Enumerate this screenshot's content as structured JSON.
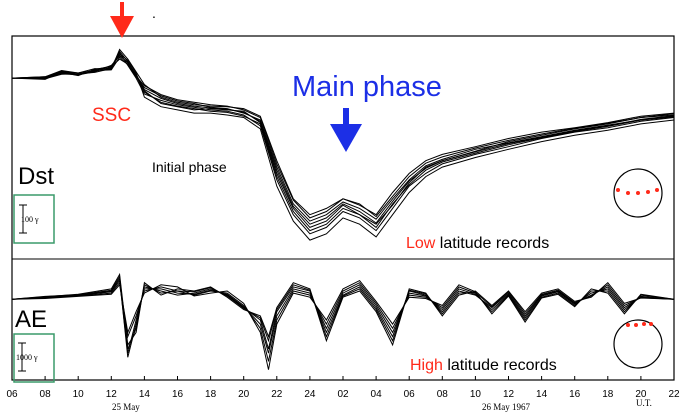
{
  "colors": {
    "annotation_red": "#ff2a1a",
    "main_phase_blue": "#1c2fe6",
    "scale_box_green": "#3a9a6a",
    "trace": "#000000"
  },
  "annotations": {
    "ssc": "SSC",
    "main_phase": "Main phase",
    "initial_phase": "Initial phase",
    "dot": ".",
    "ssc_arrow_icon": "down-arrow-icon",
    "main_phase_arrow_icon": "down-arrow-icon"
  },
  "panels": {
    "dst": {
      "label": "Dst",
      "scale": "100 γ",
      "record_highlight": "Low",
      "record_rest": " latitude records",
      "station_icon": "globe-low-latitude-icon"
    },
    "ae": {
      "label": "AE",
      "scale": "1000 γ",
      "record_highlight": "High",
      "record_rest": " latitude records",
      "station_icon": "globe-high-latitude-icon"
    }
  },
  "date_labels": {
    "day1": "25 May",
    "day2": "26 May 1967",
    "ut": "U.T."
  },
  "chart_data": [
    {
      "type": "line",
      "panel": "Dst",
      "xlabel": "",
      "ylabel": "Dst",
      "x_ticks": [
        "06",
        "08",
        "10",
        "12",
        "14",
        "16",
        "18",
        "20",
        "22",
        "24",
        "02",
        "04",
        "06",
        "08",
        "10",
        "12",
        "14",
        "16",
        "18",
        "20",
        "22"
      ],
      "x_range_hours": [
        6,
        46
      ],
      "y_range_gamma": [
        -280,
        60
      ],
      "x_hours": [
        6,
        8,
        9,
        10,
        11,
        12,
        12.5,
        13,
        13.5,
        14,
        15,
        16,
        17,
        18,
        19,
        20,
        21,
        22,
        23,
        24,
        25,
        26,
        27,
        28,
        29,
        30,
        31,
        32,
        34,
        36,
        38,
        40,
        42,
        44,
        46
      ],
      "series": [
        {
          "values": [
            0,
            2,
            12,
            8,
            15,
            14,
            45,
            30,
            10,
            -10,
            -30,
            -38,
            -42,
            -44,
            -45,
            -48,
            -60,
            -130,
            -190,
            -215,
            -205,
            -190,
            -200,
            -215,
            -180,
            -150,
            -130,
            -120,
            -108,
            -95,
            -85,
            -78,
            -70,
            -60,
            -55
          ]
        },
        {
          "values": [
            0,
            -2,
            10,
            5,
            10,
            20,
            35,
            25,
            5,
            -20,
            -40,
            -45,
            -50,
            -48,
            -50,
            -52,
            -70,
            -150,
            -205,
            -235,
            -225,
            -200,
            -215,
            -230,
            -200,
            -165,
            -140,
            -130,
            -115,
            -100,
            -90,
            -80,
            -72,
            -62,
            -58
          ]
        },
        {
          "values": [
            0,
            0,
            8,
            6,
            12,
            16,
            40,
            20,
            0,
            -25,
            -35,
            -42,
            -46,
            -50,
            -52,
            -58,
            -75,
            -160,
            -215,
            -245,
            -235,
            -210,
            -220,
            -240,
            -205,
            -170,
            -150,
            -135,
            -120,
            -108,
            -95,
            -85,
            -78,
            -68,
            -62
          ]
        },
        {
          "values": [
            0,
            1,
            9,
            4,
            14,
            18,
            30,
            22,
            2,
            -15,
            -28,
            -36,
            -40,
            -46,
            -48,
            -55,
            -66,
            -140,
            -198,
            -225,
            -215,
            -195,
            -205,
            -222,
            -190,
            -160,
            -138,
            -128,
            -112,
            -102,
            -92,
            -82,
            -74,
            -66,
            -60
          ]
        },
        {
          "values": [
            0,
            -1,
            6,
            7,
            9,
            15,
            38,
            28,
            8,
            -30,
            -45,
            -50,
            -55,
            -55,
            -58,
            -62,
            -80,
            -170,
            -225,
            -255,
            -245,
            -220,
            -230,
            -250,
            -215,
            -180,
            -155,
            -140,
            -125,
            -112,
            -100,
            -90,
            -82,
            -72,
            -66
          ]
        },
        {
          "values": [
            0,
            2,
            11,
            6,
            11,
            17,
            42,
            26,
            4,
            -22,
            -38,
            -44,
            -48,
            -52,
            -54,
            -60,
            -72,
            -155,
            -210,
            -240,
            -230,
            -205,
            -215,
            -235,
            -198,
            -168,
            -145,
            -132,
            -118,
            -105,
            -94,
            -84,
            -76,
            -66,
            -61
          ]
        },
        {
          "values": [
            0,
            0,
            7,
            5,
            13,
            19,
            36,
            24,
            6,
            -18,
            -32,
            -40,
            -44,
            -47,
            -49,
            -54,
            -68,
            -145,
            -202,
            -230,
            -220,
            -198,
            -210,
            -228,
            -194,
            -162,
            -142,
            -130,
            -116,
            -103,
            -93,
            -83,
            -75,
            -65,
            -59
          ]
        },
        {
          "values": [
            0,
            1,
            10,
            8,
            12,
            13,
            33,
            21,
            3,
            -12,
            -26,
            -34,
            -38,
            -42,
            -44,
            -50,
            -62,
            -135,
            -192,
            -220,
            -210,
            -190,
            -198,
            -218,
            -186,
            -155,
            -134,
            -124,
            -110,
            -98,
            -88,
            -79,
            -71,
            -62,
            -56
          ]
        }
      ]
    },
    {
      "type": "line",
      "panel": "AE",
      "xlabel": "",
      "ylabel": "AE",
      "x_ticks": [
        "06",
        "08",
        "10",
        "12",
        "14",
        "16",
        "18",
        "20",
        "22",
        "24",
        "02",
        "04",
        "06",
        "08",
        "10",
        "12",
        "14",
        "16",
        "18",
        "20",
        "22"
      ],
      "x_range_hours": [
        6,
        46
      ],
      "y_range_gamma": [
        -1900,
        900
      ],
      "x_hours": [
        6,
        8,
        10,
        12,
        12.5,
        13,
        13.5,
        14,
        15,
        16,
        17,
        18,
        19,
        20,
        21,
        21.5,
        22,
        23,
        24,
        25,
        26,
        27,
        28,
        29,
        30,
        31,
        32,
        33,
        34,
        35,
        36,
        37,
        38,
        39,
        40,
        41,
        42,
        43,
        44,
        46
      ],
      "series": [
        {
          "values": [
            0,
            50,
            100,
            200,
            500,
            -1400,
            -600,
            300,
            200,
            100,
            150,
            250,
            100,
            -200,
            -500,
            -1200,
            -300,
            300,
            200,
            -800,
            100,
            300,
            -200,
            -900,
            200,
            100,
            -300,
            200,
            100,
            -200,
            150,
            -400,
            100,
            200,
            -100,
            100,
            300,
            -200,
            50,
            0
          ]
        },
        {
          "values": [
            0,
            30,
            80,
            150,
            400,
            -900,
            -400,
            200,
            300,
            200,
            100,
            200,
            150,
            -150,
            -700,
            -1500,
            -500,
            200,
            100,
            -600,
            200,
            400,
            -100,
            -700,
            100,
            50,
            -200,
            300,
            150,
            -300,
            100,
            -500,
            50,
            150,
            -150,
            200,
            200,
            -300,
            100,
            0
          ]
        },
        {
          "values": [
            0,
            60,
            120,
            250,
            600,
            -1100,
            -800,
            400,
            100,
            250,
            200,
            300,
            50,
            -250,
            -400,
            -900,
            -200,
            400,
            250,
            -1000,
            50,
            200,
            -300,
            -1100,
            250,
            150,
            -400,
            100,
            200,
            -150,
            200,
            -300,
            150,
            250,
            -50,
            50,
            400,
            -100,
            30,
            0
          ]
        },
        {
          "values": [
            0,
            40,
            90,
            180,
            450,
            -1300,
            -500,
            250,
            250,
            150,
            120,
            220,
            120,
            -180,
            -600,
            -1300,
            -400,
            250,
            150,
            -700,
            150,
            350,
            -150,
            -800,
            150,
            80,
            -250,
            250,
            120,
            -250,
            120,
            -450,
            80,
            180,
            -120,
            150,
            250,
            -250,
            70,
            0
          ]
        },
        {
          "values": [
            0,
            20,
            70,
            120,
            350,
            -800,
            -300,
            150,
            350,
            300,
            80,
            150,
            200,
            -100,
            -800,
            -1700,
            -600,
            150,
            50,
            -500,
            250,
            450,
            -50,
            -600,
            50,
            20,
            -150,
            350,
            180,
            -350,
            80,
            -550,
            30,
            120,
            -180,
            250,
            150,
            -350,
            120,
            0
          ]
        },
        {
          "values": [
            0,
            70,
            110,
            220,
            550,
            -1200,
            -700,
            350,
            150,
            200,
            180,
            280,
            80,
            -220,
            -450,
            -1000,
            -250,
            350,
            220,
            -900,
            80,
            250,
            -250,
            -1000,
            220,
            130,
            -350,
            150,
            170,
            -180,
            180,
            -350,
            120,
            220,
            -80,
            80,
            350,
            -150,
            40,
            0
          ]
        }
      ]
    }
  ]
}
